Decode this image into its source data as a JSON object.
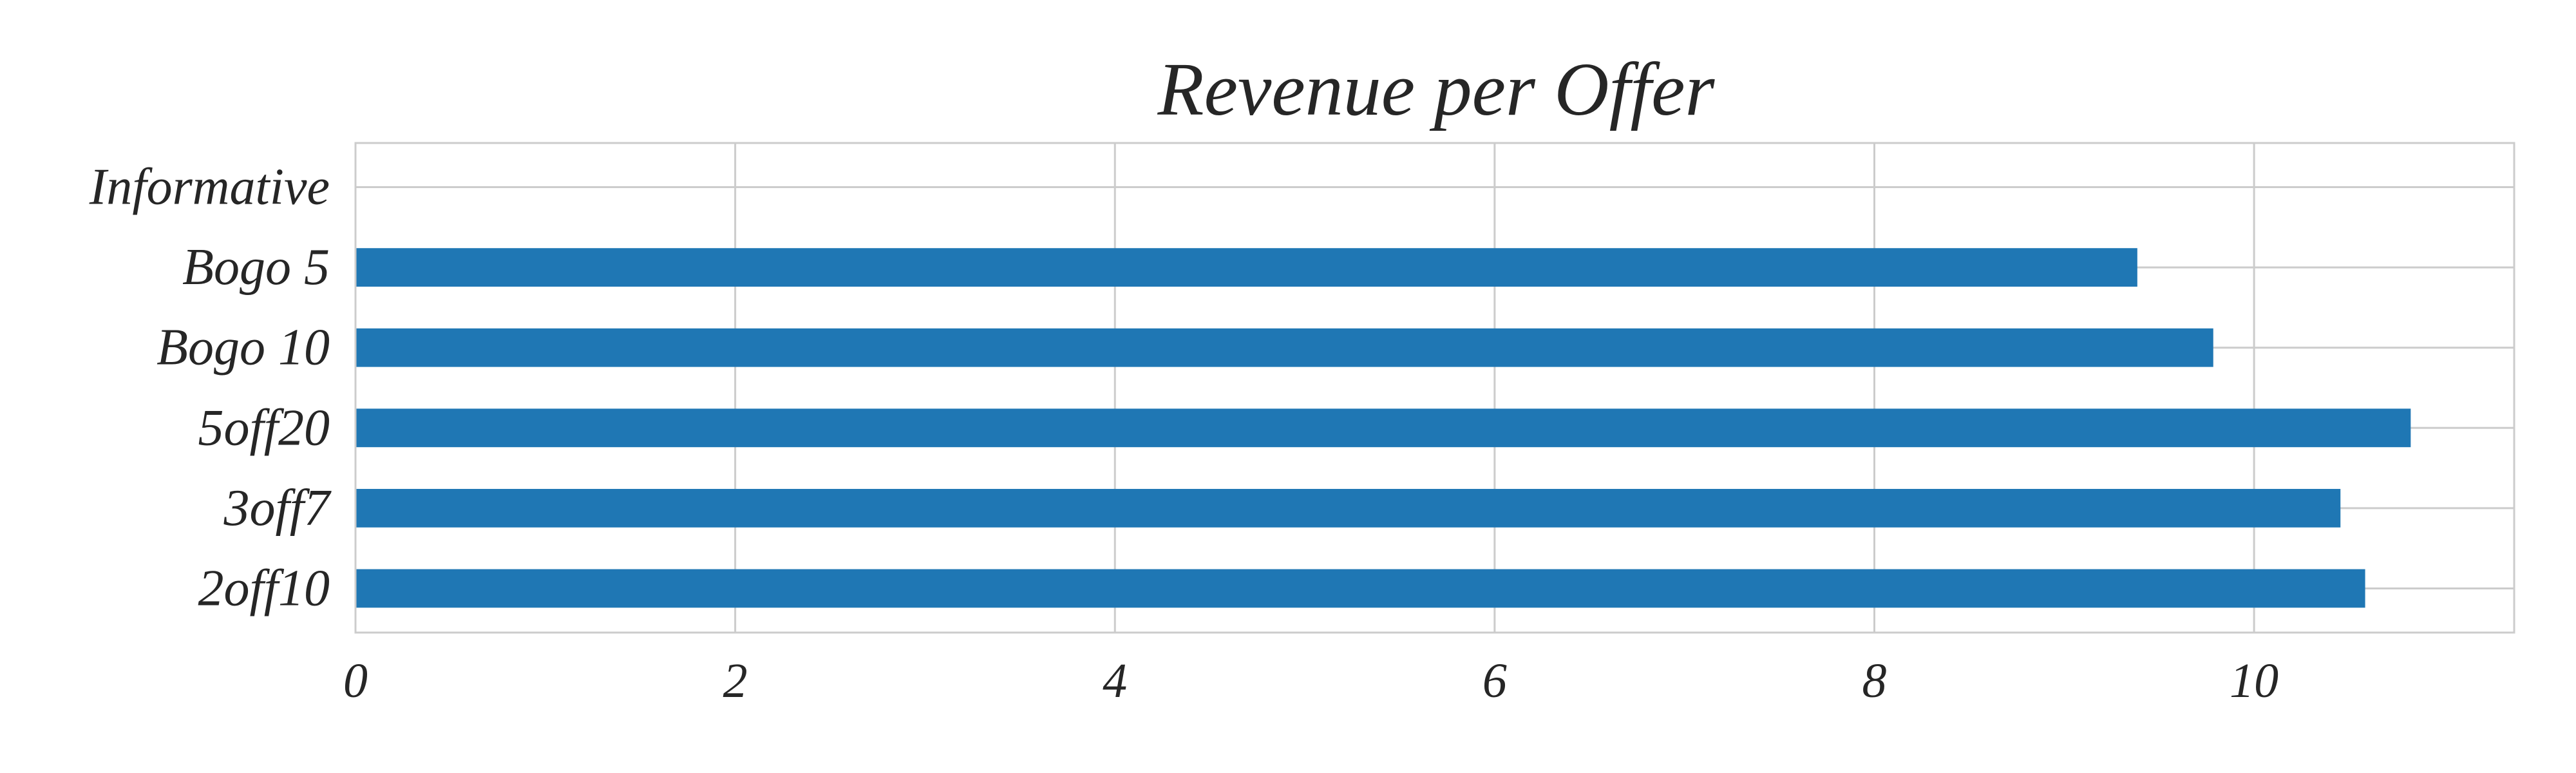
{
  "chart_data": {
    "type": "bar",
    "orientation": "horizontal",
    "title": "Revenue per Offer",
    "xlabel": "",
    "ylabel": "",
    "categories": [
      "2off10",
      "3off7",
      "5off20",
      "Bogo 10",
      "Bogo 5",
      "Informative"
    ],
    "values": [
      10.58,
      10.45,
      10.82,
      9.78,
      9.38,
      0
    ],
    "xlim": [
      0,
      11.37
    ],
    "x_ticks": [
      0,
      2,
      4,
      6,
      8,
      10
    ],
    "x_tick_labels": [
      "0",
      "2",
      "4",
      "6",
      "8",
      "10"
    ],
    "grid": true,
    "legend": "none",
    "colors": {
      "bar": "#1f77b4",
      "grid": "#cccccc",
      "axis": "#cccccc",
      "text": "#262626"
    }
  }
}
